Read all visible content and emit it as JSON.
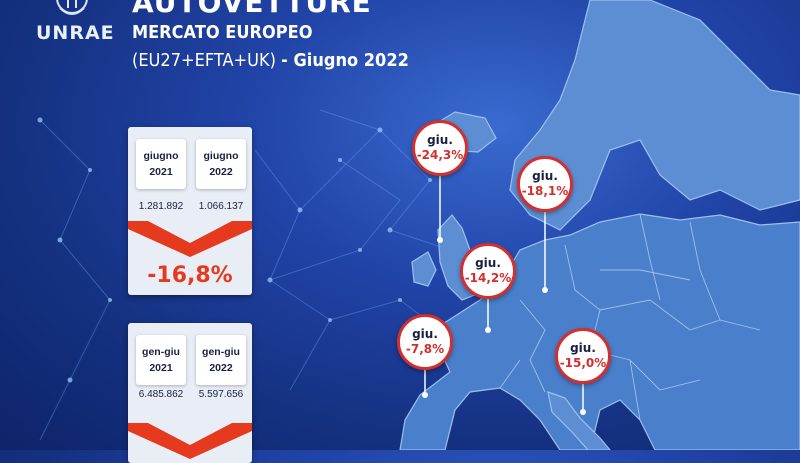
{
  "header": {
    "logo_text": "UNRAE",
    "title": "AUTOVETTURE",
    "subtitle": "MERCATO EUROPEO",
    "scope": "(EU27+EFTA+UK)",
    "period": "- Giugno 2022"
  },
  "monthly": {
    "col1_label_1": "giugno",
    "col1_label_2": "2021",
    "col2_label_1": "giugno",
    "col2_label_2": "2022",
    "col1_value": "1.281.892",
    "col2_value": "1.066.137",
    "change": "-16,8%"
  },
  "ytd": {
    "col1_label_1": "gen-giu",
    "col1_label_2": "2021",
    "col2_label_1": "gen-giu",
    "col2_label_2": "2022",
    "col1_value": "6.485.862",
    "col2_value": "5.597.656"
  },
  "markers": [
    {
      "label": "giu.",
      "value": "-24,3%"
    },
    {
      "label": "giu.",
      "value": "-18,1%"
    },
    {
      "label": "giu.",
      "value": "-14,2%"
    },
    {
      "label": "giu.",
      "value": "-7,8%"
    },
    {
      "label": "giu.",
      "value": "-15,0%"
    }
  ],
  "colors": {
    "background": "#1b3a96",
    "map_land": "#5b8fd6",
    "accent_red": "#e63a1e",
    "marker_border": "#d32f2f"
  }
}
